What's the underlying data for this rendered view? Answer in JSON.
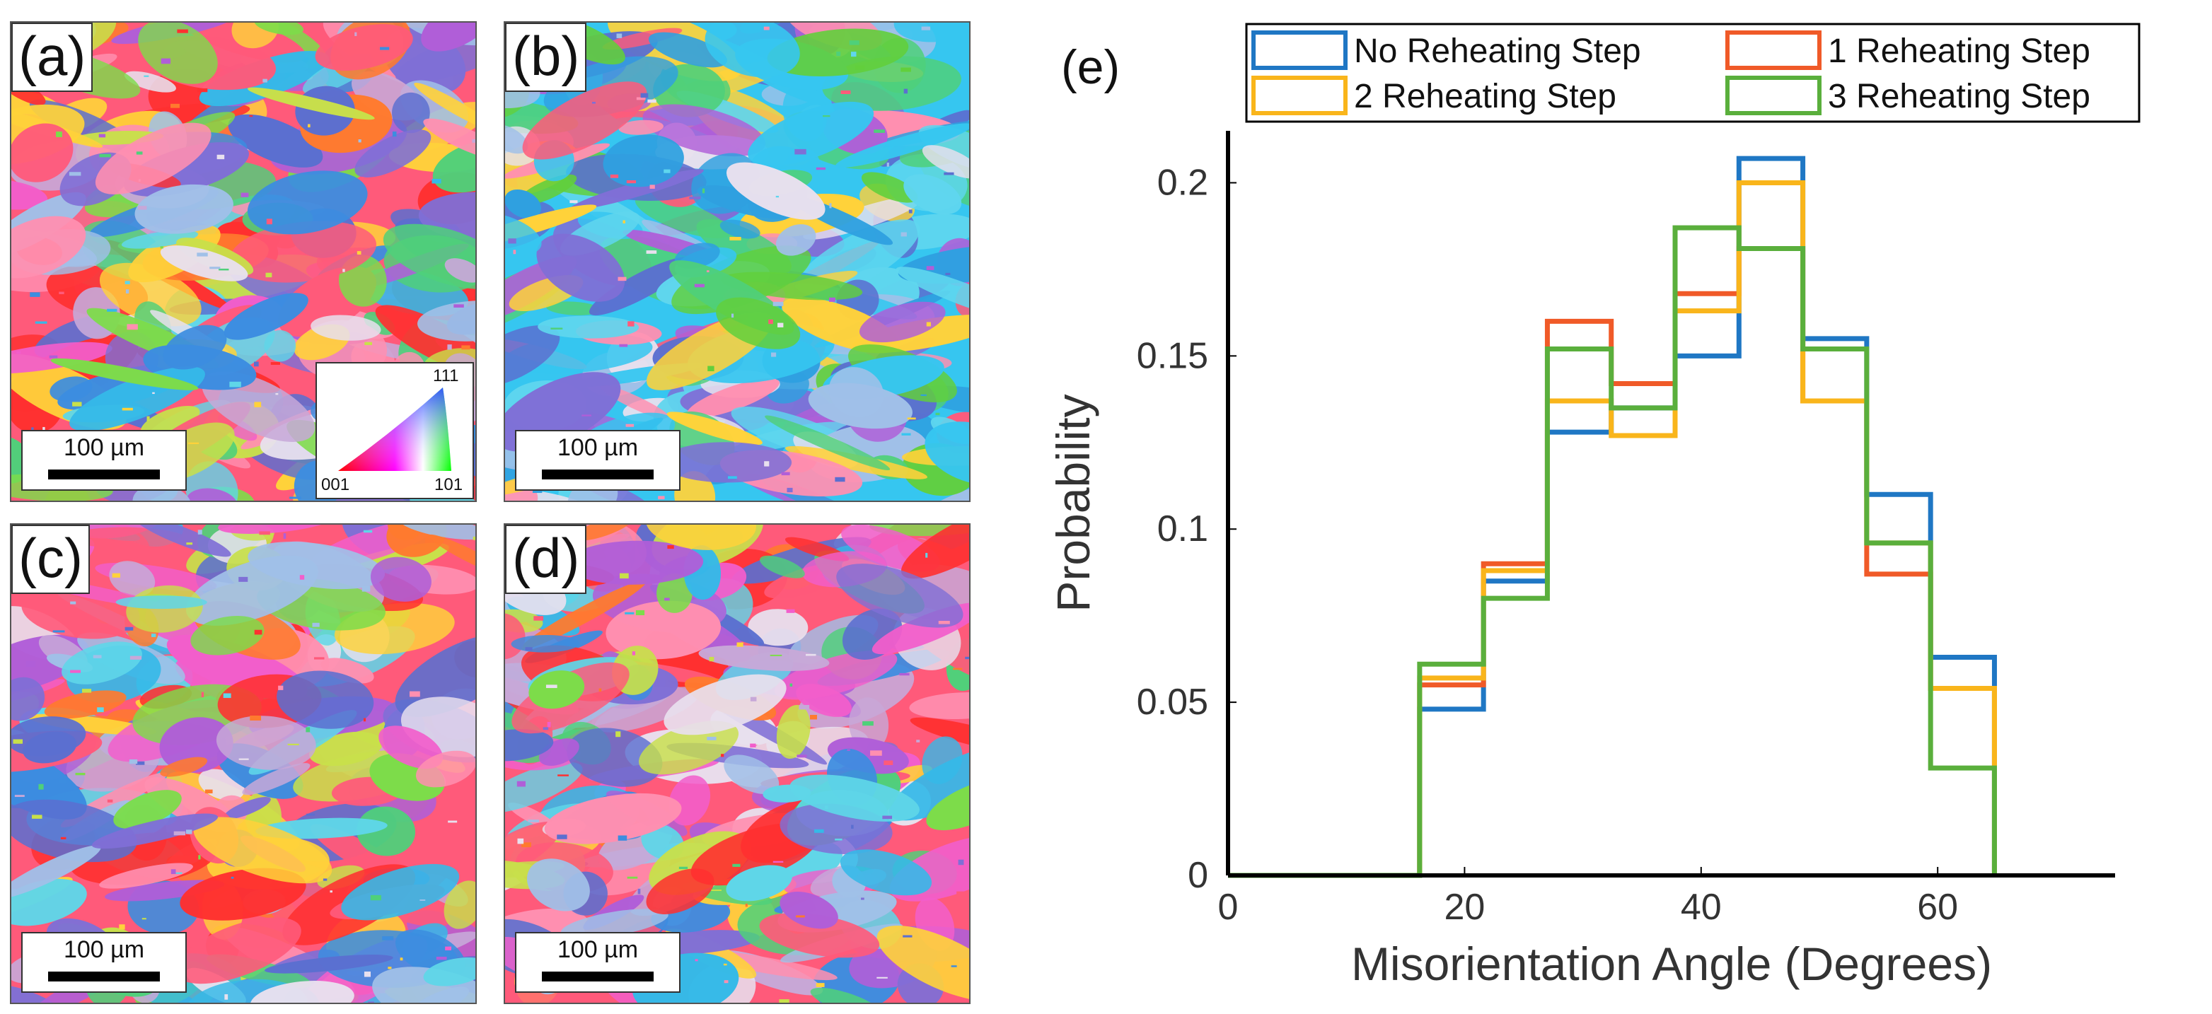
{
  "panels": [
    {
      "label": "(a)",
      "scalebar": "100 µm",
      "seed": 11,
      "palette": "base"
    },
    {
      "label": "(b)",
      "scalebar": "100 µm",
      "seed": 27,
      "palette": "cyan"
    },
    {
      "label": "(c)",
      "scalebar": "100 µm",
      "seed": 43,
      "palette": "base"
    },
    {
      "label": "(d)",
      "scalebar": "100 µm",
      "seed": 59,
      "palette": "base"
    }
  ],
  "ipf_key": {
    "corner_001": "001",
    "corner_101": "101",
    "corner_111": "111"
  },
  "colors": {
    "ebsd_base": [
      "#ff5a7a",
      "#ff8fb0",
      "#f25ecb",
      "#b05ed8",
      "#7f6fd6",
      "#5b6fd0",
      "#3c8de0",
      "#35b9e8",
      "#5fd6e8",
      "#4fd07a",
      "#7ddc4a",
      "#c8e04a",
      "#ffd23a",
      "#ff7a2e",
      "#e8e0ee",
      "#c7a8d8",
      "#a0c0e8",
      "#ff3030"
    ],
    "ebsd_cyan": [
      "#36c6f0",
      "#5fd6ee",
      "#2fa0e0",
      "#4fd07a",
      "#62cf3c",
      "#7f6fd6",
      "#b05ed8",
      "#ff8fb0",
      "#ff5a7a",
      "#e8e0ee",
      "#a0c0e8",
      "#5b6fd0",
      "#ffd23a"
    ]
  },
  "chart_data": {
    "type": "line",
    "panel_label": "(e)",
    "xlabel": "Misorientation Angle (Degrees)",
    "ylabel": "Probability",
    "xlim": [
      0,
      75
    ],
    "ylim": [
      0,
      0.215
    ],
    "xticks": [
      0,
      20,
      40,
      60
    ],
    "xtick_labels": [
      "0",
      "20",
      "40",
      "60"
    ],
    "yticks": [
      0,
      0.05,
      0.1,
      0.15,
      0.2
    ],
    "ytick_labels": [
      "0",
      "0.05",
      "0.1",
      "0.15",
      "0.2"
    ],
    "legend_position": "top",
    "bin_edges": [
      0,
      5.4,
      10.8,
      16.2,
      21.6,
      27.0,
      32.4,
      37.8,
      43.2,
      48.6,
      54.0,
      59.4,
      64.8
    ],
    "series": [
      {
        "name": "No Reheating Step",
        "color": "#1f77c4",
        "values": [
          0,
          0,
          0,
          0.048,
          0.085,
          0.128,
          0.135,
          0.15,
          0.207,
          0.155,
          0.11,
          0.063
        ]
      },
      {
        "name": "1 Reheating Step",
        "color": "#f05a28",
        "values": [
          0,
          0,
          0,
          0.055,
          0.09,
          0.16,
          0.142,
          0.168,
          0.181,
          0.137,
          0.087,
          0.054
        ]
      },
      {
        "name": "2 Reheating Step",
        "color": "#f9b51b",
        "values": [
          0,
          0,
          0,
          0.057,
          0.088,
          0.137,
          0.127,
          0.163,
          0.2,
          0.137,
          0.096,
          0.054
        ]
      },
      {
        "name": "3 Reheating Step",
        "color": "#5aaf3c",
        "values": [
          0,
          0,
          0,
          0.061,
          0.08,
          0.152,
          0.135,
          0.187,
          0.181,
          0.152,
          0.096,
          0.031
        ]
      }
    ]
  }
}
